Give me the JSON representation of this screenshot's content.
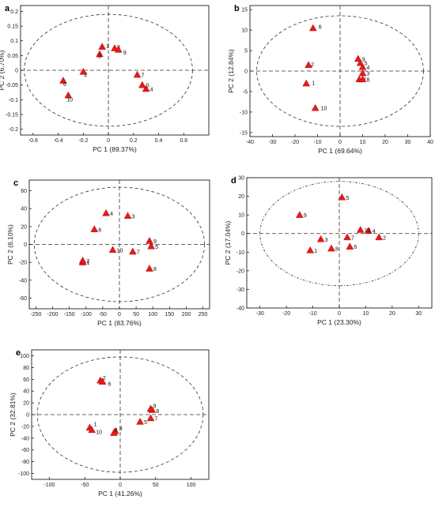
{
  "colors": {
    "marker": "#e41b1b",
    "axis": "#000000",
    "guide": "#333333"
  },
  "chart_data": [
    {
      "type": "scatter",
      "panel": "a",
      "xlabel": "PC 1 (89.37%)",
      "ylabel": "PC 2 (6.70%)",
      "xlim": [
        -0.7,
        0.8
      ],
      "ylim": [
        -0.22,
        0.22
      ],
      "xticks": [
        -0.6,
        -0.4,
        -0.2,
        0,
        0.2,
        0.4,
        0.6
      ],
      "yticks": [
        -0.2,
        -0.15,
        -0.1,
        -0.05,
        0,
        0.05,
        0.1,
        0.15,
        0.2
      ],
      "ellipse": {
        "rx": 0.67,
        "ry": 0.19,
        "style": "dashed"
      },
      "points": [
        {
          "label": "1",
          "x": -0.05,
          "y": 0.08
        },
        {
          "label": "2",
          "x": -0.2,
          "y": -0.005
        },
        {
          "label": "3",
          "x": -0.07,
          "y": 0.055
        },
        {
          "label": "4",
          "x": 0.3,
          "y": -0.063
        },
        {
          "label": "5",
          "x": 0.27,
          "y": -0.05
        },
        {
          "label": "6",
          "x": -0.36,
          "y": -0.035
        },
        {
          "label": "7",
          "x": 0.23,
          "y": -0.015
        },
        {
          "label": "8",
          "x": 0.05,
          "y": 0.075
        },
        {
          "label": "9",
          "x": 0.08,
          "y": 0.07
        },
        {
          "label": "10",
          "x": -0.32,
          "y": -0.085
        }
      ]
    },
    {
      "type": "scatter",
      "panel": "b",
      "xlabel": "PC 1 (69.64%)",
      "ylabel": "PC 2 (12.84%)",
      "xlim": [
        -40,
        40
      ],
      "ylim": [
        -16,
        16
      ],
      "xticks": [
        -40,
        -30,
        -20,
        -10,
        0,
        10,
        20,
        30,
        40
      ],
      "yticks": [
        -15,
        -10,
        -5,
        0,
        5,
        10,
        15
      ],
      "ellipse": {
        "rx": 37,
        "ry": 13.5,
        "style": "dashed"
      },
      "points": [
        {
          "label": "1",
          "x": -15,
          "y": -3
        },
        {
          "label": "2",
          "x": -14,
          "y": 1.5
        },
        {
          "label": "3",
          "x": 10,
          "y": -0.5
        },
        {
          "label": "4",
          "x": 10,
          "y": 1
        },
        {
          "label": "5",
          "x": 9,
          "y": 2
        },
        {
          "label": "6",
          "x": -12,
          "y": 10.5
        },
        {
          "label": "7",
          "x": 8.5,
          "y": -2
        },
        {
          "label": "8",
          "x": 10,
          "y": -2
        },
        {
          "label": "9",
          "x": 8,
          "y": 3
        },
        {
          "label": "10",
          "x": -11,
          "y": -9
        }
      ]
    },
    {
      "type": "scatter",
      "panel": "c",
      "xlabel": "PC 1 (83.76%)",
      "ylabel": "PC 2 (6.10%)",
      "xlim": [
        -270,
        270
      ],
      "ylim": [
        -72,
        72
      ],
      "xticks": [
        -250,
        -200,
        -150,
        -100,
        -50,
        0,
        50,
        100,
        150,
        200,
        250
      ],
      "yticks": [
        -60,
        -40,
        -20,
        0,
        20,
        40,
        60
      ],
      "ellipse": {
        "rx": 255,
        "ry": 64,
        "style": "dashed"
      },
      "points": [
        {
          "label": "1",
          "x": -110,
          "y": -20
        },
        {
          "label": "2",
          "x": -110,
          "y": -18
        },
        {
          "label": "3",
          "x": 25,
          "y": 32
        },
        {
          "label": "4",
          "x": -40,
          "y": 35
        },
        {
          "label": "5",
          "x": 95,
          "y": -2
        },
        {
          "label": "6",
          "x": -75,
          "y": 17
        },
        {
          "label": "7",
          "x": 40,
          "y": -8
        },
        {
          "label": "8",
          "x": 90,
          "y": -27
        },
        {
          "label": "9",
          "x": 90,
          "y": 4
        },
        {
          "label": "10",
          "x": -20,
          "y": -6
        }
      ]
    },
    {
      "type": "scatter",
      "panel": "d",
      "xlabel": "PC 1 (23.30%)",
      "ylabel": "PC 2 (17.04%)",
      "xlim": [
        -35,
        35
      ],
      "ylim": [
        -40,
        30
      ],
      "xticks": [
        -30,
        -20,
        -10,
        0,
        10,
        20,
        30
      ],
      "yticks": [
        -40,
        -30,
        -20,
        -10,
        0,
        10,
        20,
        30
      ],
      "ellipse": {
        "rx": 30,
        "ry": 28,
        "style": "dash-dot"
      },
      "points": [
        {
          "label": "1",
          "x": -11,
          "y": -9
        },
        {
          "label": "2",
          "x": 15,
          "y": -2
        },
        {
          "label": "3",
          "x": -7,
          "y": -3
        },
        {
          "label": "4",
          "x": 11,
          "y": 1.5
        },
        {
          "label": "5",
          "x": 1,
          "y": 19.5
        },
        {
          "label": "6",
          "x": 4,
          "y": -7
        },
        {
          "label": "7",
          "x": 3,
          "y": -2
        },
        {
          "label": "8",
          "x": -3,
          "y": -8
        },
        {
          "label": "9",
          "x": -15,
          "y": 10
        },
        {
          "label": "10",
          "x": 8,
          "y": 2
        }
      ]
    },
    {
      "type": "scatter",
      "panel": "e",
      "xlabel": "PC 1 (41.26%)",
      "ylabel": "PC 2 (32.81%)",
      "xlim": [
        -125,
        125
      ],
      "ylim": [
        -110,
        110
      ],
      "xticks": [
        -100,
        -50,
        0,
        50,
        100
      ],
      "yticks": [
        -100,
        -80,
        -60,
        -40,
        -20,
        0,
        20,
        40,
        60,
        80,
        100
      ],
      "ellipse": {
        "rx": 117,
        "ry": 98,
        "style": "dashed"
      },
      "points": [
        {
          "label": "1",
          "x": -43,
          "y": -22
        },
        {
          "label": "2",
          "x": -28,
          "y": 58
        },
        {
          "label": "3",
          "x": -7,
          "y": -28
        },
        {
          "label": "4",
          "x": -9,
          "y": -31
        },
        {
          "label": "5",
          "x": 28,
          "y": -12
        },
        {
          "label": "6",
          "x": -25,
          "y": 56
        },
        {
          "label": "7",
          "x": 43,
          "y": -6
        },
        {
          "label": "8",
          "x": 45,
          "y": 8
        },
        {
          "label": "9",
          "x": 43,
          "y": 10
        },
        {
          "label": "10",
          "x": -40,
          "y": -26
        }
      ]
    }
  ]
}
